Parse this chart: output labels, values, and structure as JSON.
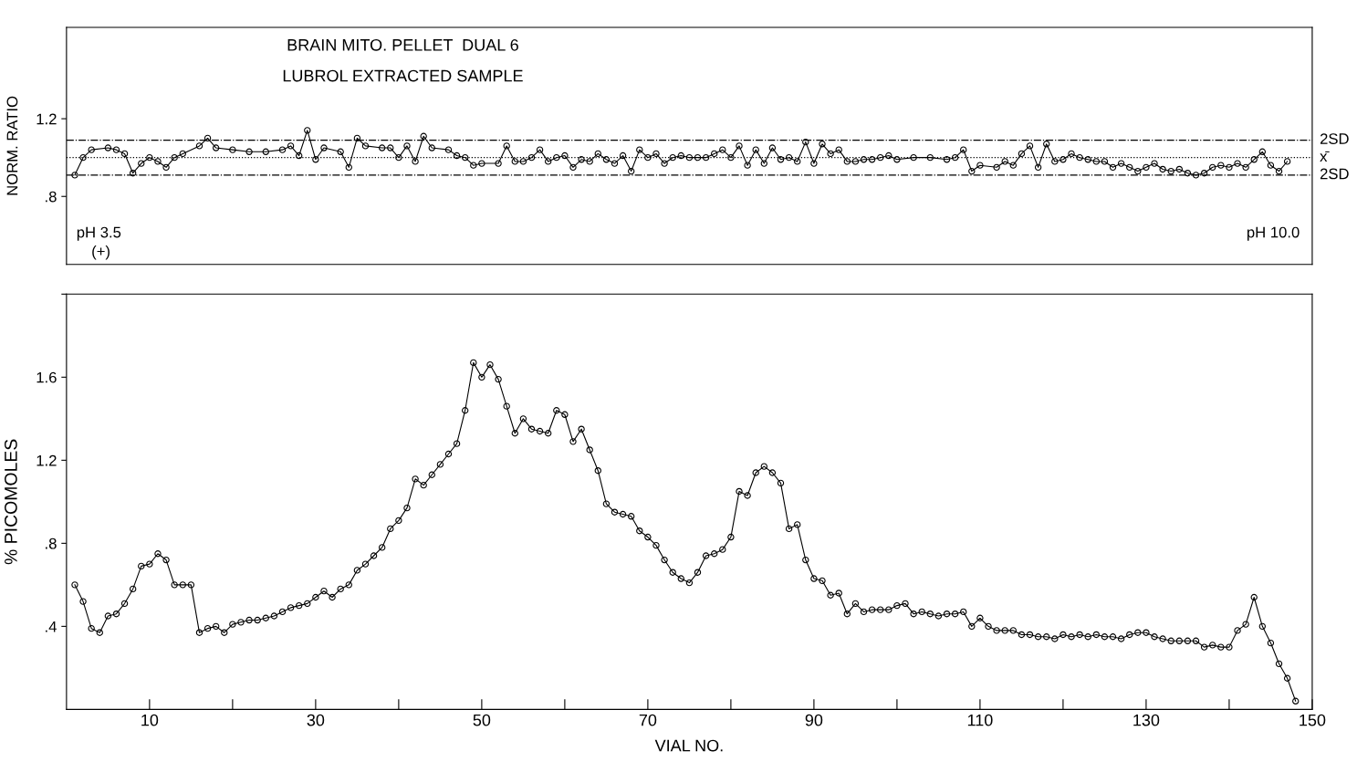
{
  "chart_data": [
    {
      "type": "line",
      "title": "BRAIN MITO. PELLET  DUAL 6",
      "subtitle": "LUBROL EXTRACTED SAMPLE",
      "ylabel": "NORM. RATIO",
      "annotations": [
        "pH 3.5",
        "(+)",
        "pH 10.0"
      ],
      "xlim": [
        0,
        150
      ],
      "ylim": [
        0.45,
        1.67
      ],
      "yticks": [
        {
          "value": 1.2,
          "label": "1.2"
        },
        {
          "value": 0.8,
          "label": ".8"
        }
      ],
      "tick_labels": "y",
      "marker": "circle",
      "line_style": "solid",
      "grid": false,
      "ref_lines": [
        {
          "axis": "y",
          "value": 1.09,
          "label": "2SD",
          "line_style": "dashed"
        },
        {
          "axis": "y",
          "value": 1.0,
          "label": "x̄",
          "line_style": "dotted"
        },
        {
          "axis": "y",
          "value": 0.91,
          "label": "2SD",
          "line_style": "dashed"
        }
      ],
      "series": [
        {
          "color": "#000000",
          "x": [
            1,
            2,
            3,
            5,
            6,
            7,
            8,
            9,
            10,
            11,
            12,
            13,
            14,
            16,
            17,
            18,
            20,
            22,
            24,
            26,
            27,
            28,
            29,
            30,
            31,
            33,
            34,
            35,
            36,
            38,
            39,
            40,
            41,
            42,
            43,
            44,
            46,
            47,
            48,
            49,
            50,
            52,
            53,
            54,
            55,
            56,
            57,
            58,
            59,
            60,
            61,
            62,
            63,
            64,
            65,
            66,
            67,
            68,
            69,
            70,
            71,
            72,
            73,
            74,
            75,
            76,
            77,
            78,
            79,
            80,
            81,
            82,
            83,
            84,
            85,
            86,
            87,
            88,
            89,
            90,
            91,
            92,
            93,
            94,
            95,
            96,
            97,
            98,
            99,
            100,
            102,
            104,
            106,
            107,
            108,
            109,
            110,
            112,
            113,
            114,
            115,
            116,
            117,
            118,
            119,
            120,
            121,
            122,
            123,
            124,
            125,
            126,
            127,
            128,
            129,
            130,
            131,
            132,
            133,
            134,
            135,
            136,
            137,
            138,
            139,
            140,
            141,
            142,
            143,
            144,
            145,
            146,
            147
          ],
          "values": [
            0.91,
            1.0,
            1.04,
            1.05,
            1.04,
            1.02,
            0.92,
            0.97,
            1.0,
            0.98,
            0.95,
            1.0,
            1.02,
            1.06,
            1.1,
            1.05,
            1.04,
            1.03,
            1.03,
            1.04,
            1.06,
            1.01,
            1.14,
            0.99,
            1.05,
            1.03,
            0.95,
            1.1,
            1.06,
            1.05,
            1.05,
            1.0,
            1.06,
            0.98,
            1.11,
            1.05,
            1.04,
            1.01,
            1.0,
            0.96,
            0.97,
            0.97,
            1.06,
            0.98,
            0.98,
            1.0,
            1.04,
            0.98,
            1.0,
            1.01,
            0.95,
            0.99,
            0.98,
            1.02,
            0.99,
            0.97,
            1.01,
            0.93,
            1.04,
            1.0,
            1.02,
            0.97,
            1.0,
            1.01,
            1.0,
            1.0,
            1.0,
            1.02,
            1.04,
            1.0,
            1.06,
            0.96,
            1.04,
            0.97,
            1.05,
            0.99,
            1.0,
            0.98,
            1.08,
            0.97,
            1.07,
            1.02,
            1.04,
            0.98,
            0.98,
            0.99,
            0.99,
            1.0,
            1.01,
            0.99,
            1.0,
            1.0,
            0.99,
            1.0,
            1.04,
            0.93,
            0.96,
            0.95,
            0.98,
            0.96,
            1.02,
            1.06,
            0.95,
            1.07,
            0.98,
            0.99,
            1.02,
            1.0,
            0.99,
            0.98,
            0.98,
            0.95,
            0.97,
            0.95,
            0.93,
            0.95,
            0.97,
            0.94,
            0.93,
            0.94,
            0.92,
            0.91,
            0.92,
            0.95,
            0.96,
            0.95,
            0.97,
            0.95,
            0.99,
            1.03,
            0.96,
            0.93,
            0.98
          ]
        }
      ]
    },
    {
      "type": "line",
      "xlabel": "VIAL NO.",
      "ylabel": "% PICOMOLES",
      "xlim": [
        0,
        150
      ],
      "xticks": [
        10,
        {
          "value": 20,
          "label": null
        },
        30,
        {
          "value": 40,
          "label": null
        },
        50,
        {
          "value": 60,
          "label": null
        },
        70,
        {
          "value": 80,
          "label": null
        },
        90,
        {
          "value": 100,
          "label": null
        },
        110,
        {
          "value": 120,
          "label": null
        },
        130,
        {
          "value": 140,
          "label": null
        },
        150
      ],
      "ylim": [
        0,
        2.0
      ],
      "yticks": [
        {
          "value": 2.0,
          "label": null
        },
        {
          "value": 1.6,
          "label": "1.6"
        },
        {
          "value": 1.2,
          "label": "1.2"
        },
        {
          "value": 0.8,
          "label": ".8"
        },
        {
          "value": 0.4,
          "label": ".4"
        }
      ],
      "marker": "circle",
      "line_style": "solid",
      "grid": false,
      "series": [
        {
          "color": "#000000",
          "x": [
            1,
            2,
            3,
            4,
            5,
            6,
            7,
            8,
            9,
            10,
            11,
            12,
            13,
            14,
            15,
            16,
            17,
            18,
            19,
            20,
            21,
            22,
            23,
            24,
            25,
            26,
            27,
            28,
            29,
            30,
            31,
            32,
            33,
            34,
            35,
            36,
            37,
            38,
            39,
            40,
            41,
            42,
            43,
            44,
            45,
            46,
            47,
            48,
            49,
            50,
            51,
            52,
            53,
            54,
            55,
            56,
            57,
            58,
            59,
            60,
            61,
            62,
            63,
            64,
            65,
            66,
            67,
            68,
            69,
            70,
            71,
            72,
            73,
            74,
            75,
            76,
            77,
            78,
            79,
            80,
            81,
            82,
            83,
            84,
            85,
            86,
            87,
            88,
            89,
            90,
            91,
            92,
            93,
            94,
            95,
            96,
            97,
            98,
            99,
            100,
            101,
            102,
            103,
            104,
            105,
            106,
            107,
            108,
            109,
            110,
            111,
            112,
            113,
            114,
            115,
            116,
            117,
            118,
            119,
            120,
            121,
            122,
            123,
            124,
            125,
            126,
            127,
            128,
            129,
            130,
            131,
            132,
            133,
            134,
            135,
            136,
            137,
            138,
            139,
            140,
            141,
            142,
            143,
            144,
            145,
            146,
            147,
            148
          ],
          "values": [
            0.6,
            0.52,
            0.39,
            0.37,
            0.45,
            0.46,
            0.51,
            0.58,
            0.69,
            0.7,
            0.75,
            0.72,
            0.6,
            0.6,
            0.6,
            0.37,
            0.39,
            0.4,
            0.37,
            0.41,
            0.42,
            0.43,
            0.43,
            0.44,
            0.45,
            0.47,
            0.49,
            0.5,
            0.51,
            0.54,
            0.57,
            0.54,
            0.58,
            0.6,
            0.67,
            0.7,
            0.74,
            0.78,
            0.87,
            0.91,
            0.97,
            1.11,
            1.08,
            1.13,
            1.18,
            1.23,
            1.28,
            1.44,
            1.67,
            1.6,
            1.66,
            1.59,
            1.46,
            1.33,
            1.4,
            1.35,
            1.34,
            1.33,
            1.44,
            1.42,
            1.29,
            1.35,
            1.25,
            1.15,
            0.99,
            0.95,
            0.94,
            0.93,
            0.86,
            0.83,
            0.79,
            0.72,
            0.66,
            0.63,
            0.61,
            0.66,
            0.74,
            0.75,
            0.77,
            0.83,
            1.05,
            1.03,
            1.14,
            1.17,
            1.14,
            1.09,
            0.87,
            0.89,
            0.72,
            0.63,
            0.62,
            0.55,
            0.56,
            0.46,
            0.51,
            0.47,
            0.48,
            0.48,
            0.48,
            0.5,
            0.51,
            0.46,
            0.47,
            0.46,
            0.45,
            0.46,
            0.46,
            0.47,
            0.4,
            0.44,
            0.4,
            0.38,
            0.38,
            0.38,
            0.36,
            0.36,
            0.35,
            0.35,
            0.34,
            0.36,
            0.35,
            0.36,
            0.35,
            0.36,
            0.35,
            0.35,
            0.34,
            0.36,
            0.37,
            0.37,
            0.35,
            0.34,
            0.33,
            0.33,
            0.33,
            0.33,
            0.3,
            0.31,
            0.3,
            0.3,
            0.38,
            0.41,
            0.54,
            0.4,
            0.32,
            0.22,
            0.15,
            0.04
          ]
        }
      ]
    }
  ]
}
